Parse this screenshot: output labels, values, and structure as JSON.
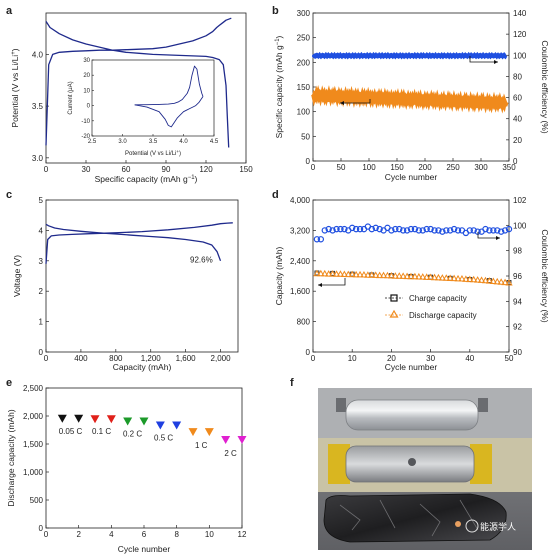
{
  "panels": {
    "a": {
      "letter": "a",
      "xlabel": "Specific capacity (mAh g",
      "xlabel_sup": "−1",
      "xlabel_close": ")",
      "ylabel": "Potential (V vs Li/Li",
      "ylabel_sup": "+",
      "ylabel_close": ")",
      "xticks": [
        "0",
        "30",
        "60",
        "90",
        "120",
        "150"
      ],
      "yticks": [
        "3.0",
        "3.5",
        "4.0"
      ],
      "inset": {
        "xlabel": "Potential (V vs Li/Li",
        "xlabel_sup": "+",
        "xlabel_close": ")",
        "ylabel": "Current (μA)",
        "xticks": [
          "2.5",
          "3.0",
          "3.5",
          "4.0",
          "4.5"
        ],
        "yticks": [
          "-20",
          "-10",
          "0",
          "10",
          "20",
          "30"
        ]
      }
    },
    "b": {
      "letter": "b",
      "xlabel": "Cycle number",
      "ylabel_left": "Specific capacity (mAh g",
      "ylabel_left_sup": "−1",
      "ylabel_left_close": ")",
      "ylabel_right": "Coulombic efficiency (%)",
      "xticks": [
        "0",
        "50",
        "100",
        "150",
        "200",
        "250",
        "300",
        "350"
      ],
      "yticks_left": [
        "0",
        "50",
        "100",
        "150",
        "200",
        "250",
        "300"
      ],
      "yticks_right": [
        "0",
        "20",
        "40",
        "60",
        "80",
        "100",
        "120",
        "140"
      ]
    },
    "c": {
      "letter": "c",
      "xlabel": "Capacity (mAh)",
      "ylabel": "Voltage (V)",
      "xticks": [
        "0",
        "400",
        "800",
        "1,200",
        "1,600",
        "2,000"
      ],
      "yticks": [
        "0",
        "1",
        "2",
        "3",
        "4",
        "5"
      ],
      "annotation": "92.6%"
    },
    "d": {
      "letter": "d",
      "xlabel": "Cycle number",
      "ylabel_left": "Capacity (mAh)",
      "ylabel_right": "Coulombic efficiency (%)",
      "xticks": [
        "0",
        "10",
        "20",
        "30",
        "40",
        "50"
      ],
      "yticks_left": [
        "0",
        "800",
        "1,600",
        "2,400",
        "3,200",
        "4,000"
      ],
      "yticks_right": [
        "90",
        "92",
        "94",
        "96",
        "98",
        "100",
        "102"
      ],
      "legend": [
        "Charge capacity",
        "Discharge capacity"
      ]
    },
    "e": {
      "letter": "e",
      "xlabel": "Cycle number",
      "ylabel": "Discharge capacity (mAh)",
      "xticks": [
        "0",
        "2",
        "4",
        "6",
        "8",
        "10",
        "12"
      ],
      "yticks": [
        "0",
        "500",
        "1,000",
        "1,500",
        "2,000",
        "2,500"
      ],
      "rate_labels": [
        "0.05 C",
        "0.1 C",
        "0.2 C",
        "0.5 C",
        "1 C",
        "2 C"
      ]
    },
    "f": {
      "letter": "f"
    }
  },
  "colors": {
    "navy": "#1f2a8c",
    "blue": "#1f4fe0",
    "orange": "#f08a1c",
    "axis": "#222222"
  },
  "watermark": "能源学人",
  "chart_data": [
    {
      "panel": "a",
      "type": "line",
      "xlim": [
        0,
        150
      ],
      "ylim": [
        2.95,
        4.4
      ],
      "series": [
        {
          "x": [
            0,
            2,
            5,
            10,
            20,
            30,
            40,
            50,
            60,
            70,
            80,
            90,
            100,
            110,
            120,
            125,
            128,
            130,
            133,
            135,
            137,
            139
          ],
          "y": [
            3.12,
            3.9,
            4.0,
            4.02,
            4.03,
            4.035,
            4.04,
            4.04,
            4.045,
            4.05,
            4.055,
            4.07,
            4.1,
            4.13,
            4.18,
            4.22,
            4.26,
            4.28,
            4.31,
            4.33,
            4.34,
            4.35
          ]
        },
        {
          "x": [
            0,
            3,
            10,
            20,
            30,
            40,
            50,
            60,
            70,
            80,
            90,
            100,
            110,
            120,
            125,
            130,
            133,
            135,
            136,
            137
          ],
          "y": [
            4.32,
            4.26,
            4.2,
            4.14,
            4.1,
            4.07,
            4.04,
            4.02,
            4.01,
            4.0,
            3.995,
            3.99,
            3.985,
            3.98,
            3.97,
            3.95,
            3.9,
            3.7,
            3.4,
            3.1
          ]
        }
      ],
      "inset": {
        "xlim": [
          2.5,
          4.5
        ],
        "ylim": [
          -20,
          30
        ],
        "series": [
          {
            "x": [
              3.2,
              3.4,
              3.6,
              3.75,
              3.85,
              3.92,
              3.98,
              4.02,
              4.06,
              4.1,
              4.14,
              4.18,
              4.22,
              4.26,
              4.3,
              4.32
            ],
            "y": [
              0.5,
              0.6,
              0.8,
              1.0,
              1.5,
              2.5,
              4,
              6,
              8,
              12,
              20,
              26,
              24,
              14,
              8,
              6
            ]
          },
          {
            "x": [
              4.32,
              4.25,
              4.2,
              4.15,
              4.1,
              4.05,
              4.0,
              3.95,
              3.9,
              3.85,
              3.8,
              3.75,
              3.7,
              3.6,
              3.4,
              3.2
            ],
            "y": [
              6,
              2,
              0,
              -1,
              -2,
              -3,
              -4,
              -6,
              -8,
              -11,
              -14,
              -13,
              -9,
              -4,
              -1,
              0.5
            ]
          }
        ]
      }
    },
    {
      "panel": "b",
      "type": "scatter",
      "xlim": [
        0,
        350
      ],
      "ylim": [
        0,
        300
      ],
      "y2lim": [
        0,
        140
      ],
      "series": [
        {
          "name": "",
          "axis": "right",
          "x": [
            1,
            50,
            100,
            150,
            200,
            250,
            300,
            340
          ],
          "y": [
            99.5,
            99.6,
            99.7,
            99.7,
            99.7,
            99.6,
            99.6,
            99.6
          ]
        },
        {
          "name": "",
          "axis": "left",
          "x": [
            1,
            25,
            50,
            75,
            100,
            125,
            150,
            175,
            200,
            225,
            250,
            275,
            300,
            325,
            340
          ],
          "y": [
            133,
            130,
            128,
            127,
            126,
            125,
            124,
            123,
            122,
            122,
            121,
            120,
            119,
            118,
            117
          ]
        }
      ]
    },
    {
      "panel": "c",
      "type": "line",
      "xlim": [
        0,
        2200
      ],
      "ylim": [
        0,
        5
      ],
      "series": [
        {
          "x": [
            0,
            20,
            60,
            150,
            300,
            500,
            800,
            1100,
            1400,
            1700,
            1900,
            2000,
            2080,
            2140
          ],
          "y": [
            2.9,
            3.7,
            3.82,
            3.85,
            3.87,
            3.89,
            3.92,
            3.96,
            4.02,
            4.1,
            4.17,
            4.22,
            4.24,
            4.25
          ]
        },
        {
          "x": [
            0,
            30,
            100,
            200,
            400,
            600,
            800,
            1000,
            1200,
            1400,
            1600,
            1800,
            1900,
            1960,
            2000
          ],
          "y": [
            4.2,
            4.15,
            4.08,
            4.03,
            3.97,
            3.92,
            3.88,
            3.84,
            3.8,
            3.76,
            3.7,
            3.62,
            3.52,
            3.3,
            3.0
          ]
        }
      ],
      "annotation": {
        "text": "92.6%",
        "x": 1650,
        "y": 3.4
      }
    },
    {
      "panel": "d",
      "type": "scatter",
      "xlim": [
        0,
        50
      ],
      "ylim": [
        0,
        4000
      ],
      "y2lim": [
        90,
        102
      ],
      "series": [
        {
          "name": "",
          "axis": "right",
          "x": [
            1,
            2,
            3,
            4,
            5,
            6,
            7,
            8,
            9,
            10,
            11,
            12,
            13,
            14,
            15,
            16,
            17,
            18,
            19,
            20,
            21,
            22,
            23,
            24,
            25,
            26,
            27,
            28,
            29,
            30,
            31,
            32,
            33,
            34,
            35,
            36,
            37,
            38,
            39,
            40,
            41,
            42,
            43,
            44,
            45,
            46,
            47,
            48,
            49,
            50
          ],
          "y": [
            98.9,
            98.9,
            99.6,
            99.7,
            99.6,
            99.7,
            99.7,
            99.7,
            99.6,
            99.8,
            99.7,
            99.7,
            99.7,
            99.9,
            99.7,
            99.8,
            99.7,
            99.6,
            99.8,
            99.6,
            99.7,
            99.7,
            99.6,
            99.6,
            99.7,
            99.7,
            99.6,
            99.6,
            99.7,
            99.7,
            99.6,
            99.6,
            99.5,
            99.6,
            99.6,
            99.7,
            99.6,
            99.6,
            99.4,
            99.6,
            99.6,
            99.5,
            99.5,
            99.7,
            99.6,
            99.6,
            99.6,
            99.5,
            99.6,
            99.7
          ]
        },
        {
          "name": "Charge capacity",
          "axis": "left",
          "x": [
            1,
            5,
            10,
            15,
            20,
            25,
            30,
            35,
            40,
            45,
            50
          ],
          "y": [
            2080,
            2070,
            2050,
            2030,
            2010,
            1990,
            1970,
            1940,
            1910,
            1880,
            1830
          ]
        },
        {
          "name": "Discharge capacity",
          "axis": "left",
          "x": [
            1,
            2,
            3,
            4,
            5,
            6,
            7,
            8,
            9,
            10,
            11,
            12,
            13,
            14,
            15,
            16,
            17,
            18,
            19,
            20,
            21,
            22,
            23,
            24,
            25,
            26,
            27,
            28,
            29,
            30,
            31,
            32,
            33,
            34,
            35,
            36,
            37,
            38,
            39,
            40,
            41,
            42,
            43,
            44,
            45,
            46,
            47,
            48,
            49,
            50
          ],
          "y": [
            2060,
            2060,
            2055,
            2050,
            2050,
            2045,
            2045,
            2040,
            2035,
            2035,
            2030,
            2030,
            2025,
            2020,
            2020,
            2015,
            2010,
            2010,
            2005,
            2000,
            1995,
            1995,
            1990,
            1985,
            1980,
            1980,
            1975,
            1970,
            1965,
            1960,
            1955,
            1950,
            1945,
            1940,
            1935,
            1930,
            1925,
            1920,
            1910,
            1905,
            1900,
            1890,
            1885,
            1875,
            1865,
            1855,
            1845,
            1835,
            1825,
            1815
          ]
        }
      ]
    },
    {
      "panel": "e",
      "type": "scatter",
      "xlim": [
        0,
        12
      ],
      "ylim": [
        0,
        2500
      ],
      "points": [
        {
          "x": 1,
          "y": 1960,
          "color": "#111111"
        },
        {
          "x": 2,
          "y": 1960,
          "color": "#111111"
        },
        {
          "x": 3,
          "y": 1950,
          "color": "#e0201a"
        },
        {
          "x": 4,
          "y": 1950,
          "color": "#e0201a"
        },
        {
          "x": 5,
          "y": 1910,
          "color": "#1c9a2a"
        },
        {
          "x": 6,
          "y": 1910,
          "color": "#1c9a2a"
        },
        {
          "x": 7,
          "y": 1840,
          "color": "#1f3fe0"
        },
        {
          "x": 8,
          "y": 1840,
          "color": "#1f3fe0"
        },
        {
          "x": 9,
          "y": 1720,
          "color": "#f08a1c"
        },
        {
          "x": 10,
          "y": 1720,
          "color": "#f08a1c"
        },
        {
          "x": 11,
          "y": 1580,
          "color": "#e020d0"
        },
        {
          "x": 12,
          "y": 1580,
          "color": "#e020d0"
        }
      ],
      "rate_labels": [
        "0.05 C",
        "0.1 C",
        "0.2 C",
        "0.5 C",
        "1 C",
        "2 C"
      ]
    }
  ]
}
